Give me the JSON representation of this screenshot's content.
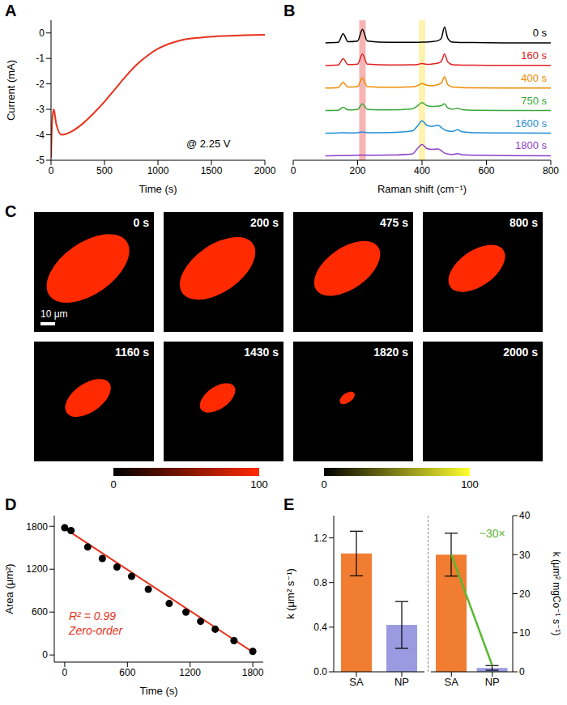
{
  "chart_data": [
    {
      "panel": "A",
      "type": "line",
      "x": [
        0,
        10,
        25,
        50,
        100,
        200,
        300,
        400,
        500,
        600,
        700,
        800,
        900,
        1000,
        1100,
        1200,
        1400,
        1600,
        1800,
        2000
      ],
      "values": [
        -4.9,
        -3.5,
        -3.0,
        -3.6,
        -4.0,
        -3.85,
        -3.55,
        -3.15,
        -2.7,
        -2.2,
        -1.7,
        -1.25,
        -0.9,
        -0.62,
        -0.43,
        -0.3,
        -0.18,
        -0.12,
        -0.09,
        -0.07
      ],
      "color": "#e8321c",
      "xlim": [
        0,
        2000
      ],
      "xticks": [
        0,
        500,
        1000,
        1500,
        2000
      ],
      "ylim": [
        -5,
        0.5
      ],
      "yticks": [
        -5,
        -4,
        -3,
        -2,
        -1,
        0
      ],
      "x_label": "Time (s)",
      "y_label": "Current (mA)",
      "annotation": "@ 2.25 V"
    },
    {
      "panel": "B",
      "type": "line",
      "x": [
        100,
        140,
        155,
        170,
        200,
        215,
        230,
        300,
        370,
        385,
        400,
        415,
        430,
        450,
        460,
        470,
        480,
        495,
        510,
        525,
        560,
        650,
        800
      ],
      "series": [
        {
          "name": "0 s",
          "color": "#000000",
          "values": [
            5,
            5.02,
            5.4,
            5.05,
            5.08,
            5.6,
            5.08,
            5.02,
            5.02,
            5.02,
            5.03,
            5.03,
            5.05,
            5.1,
            5.2,
            5.7,
            5.2,
            5.03,
            5.02,
            5.01,
            5.01,
            5,
            5
          ]
        },
        {
          "name": "160 s",
          "color": "#e02020",
          "values": [
            4,
            4.02,
            4.3,
            4.04,
            4.06,
            4.5,
            4.06,
            4.02,
            4.03,
            4.04,
            4.08,
            4.05,
            4.06,
            4.1,
            4.18,
            4.5,
            4.15,
            4.03,
            4.02,
            4.01,
            4.01,
            4,
            4
          ]
        },
        {
          "name": "400 s",
          "color": "#f08a00",
          "values": [
            3,
            3.02,
            3.25,
            3.04,
            3.06,
            3.45,
            3.06,
            3.03,
            3.05,
            3.1,
            3.2,
            3.12,
            3.1,
            3.15,
            3.22,
            3.5,
            3.15,
            3.04,
            3.03,
            3.02,
            3.01,
            3,
            3
          ]
        },
        {
          "name": "750 s",
          "color": "#3aa63a",
          "values": [
            2,
            2.01,
            2.15,
            2.03,
            2.05,
            2.3,
            2.05,
            2.03,
            2.08,
            2.2,
            2.35,
            2.22,
            2.18,
            2.2,
            2.22,
            2.3,
            2.12,
            2.06,
            2.1,
            2.04,
            2.01,
            2,
            2
          ]
        },
        {
          "name": "1600 s",
          "color": "#1f8fd6",
          "values": [
            1,
            1.01,
            1.02,
            1.01,
            1.02,
            1.05,
            1.02,
            1.03,
            1.1,
            1.3,
            1.55,
            1.35,
            1.3,
            1.35,
            1.25,
            1.15,
            1.1,
            1.08,
            1.15,
            1.06,
            1.02,
            1.01,
            1
          ]
        },
        {
          "name": "1800 s",
          "color": "#8b3fc8",
          "values": [
            0,
            0.01,
            0.01,
            0.01,
            0.02,
            0.03,
            0.02,
            0.03,
            0.08,
            0.3,
            0.5,
            0.32,
            0.28,
            0.3,
            0.22,
            0.12,
            0.08,
            0.06,
            0.1,
            0.04,
            0.02,
            0.01,
            0
          ]
        }
      ],
      "xlim": [
        0,
        800
      ],
      "xticks": [
        0,
        200,
        400,
        600,
        800
      ],
      "ylim": [
        -0.2,
        6
      ],
      "tick_labels": "x",
      "x_label": "Raman shift (cm⁻¹)",
      "highlights": [
        {
          "range": [
            205,
            225
          ],
          "color": "#f6a0a0"
        },
        {
          "range": [
            390,
            410
          ],
          "color": "#fff09a"
        }
      ]
    },
    {
      "panel": "C",
      "type": "image_series",
      "frames": [
        {
          "label": "0 s",
          "red_area": 1800
        },
        {
          "label": "200 s",
          "red_area": 1500
        },
        {
          "label": "475 s",
          "red_area": 1150
        },
        {
          "label": "800 s",
          "red_area": 850
        },
        {
          "label": "1160 s",
          "red_area": 550
        },
        {
          "label": "1430 s",
          "red_area": 330
        },
        {
          "label": "1820 s",
          "red_area": 60
        },
        {
          "label": "2000 s",
          "red_area": 0
        }
      ],
      "scale_bar": "10 μm",
      "colorbars": [
        {
          "colors": [
            "#000000",
            "#ff2a00"
          ],
          "ticks": [
            0,
            100
          ]
        },
        {
          "colors": [
            "#000000",
            "#ffff30"
          ],
          "ticks": [
            0,
            100
          ]
        }
      ]
    },
    {
      "panel": "D",
      "type": "scatter",
      "x": [
        0,
        60,
        220,
        360,
        500,
        640,
        800,
        1000,
        1160,
        1300,
        1440,
        1620,
        1800
      ],
      "values": [
        1780,
        1740,
        1510,
        1350,
        1230,
        1100,
        920,
        720,
        600,
        470,
        360,
        200,
        50
      ],
      "color": "#000000",
      "marker": "circle",
      "fit": {
        "x": [
          0,
          1800
        ],
        "values": [
          1770,
          40
        ],
        "color": "#e8321c"
      },
      "xlim": [
        -100,
        1900
      ],
      "xticks": [
        0,
        600,
        1200,
        1800
      ],
      "ylim": [
        -100,
        1950
      ],
      "yticks": [
        0,
        600,
        1200,
        1800
      ],
      "x_label": "Time (s)",
      "y_label": "Area (μm²)",
      "annotations": [
        "R² = 0.99",
        "Zero-order"
      ]
    },
    {
      "panel": "E",
      "type": "bar",
      "subplots": [
        {
          "categories": [
            "SA",
            "NP"
          ],
          "values": [
            1.06,
            0.42
          ],
          "errors": [
            0.2,
            0.21
          ],
          "colors": [
            "#f07d32",
            "#9a9ae0"
          ],
          "ylim": [
            0,
            1.4
          ],
          "yticks": [
            {
              "value": 0,
              "label": "0.0"
            },
            0.4,
            0.8,
            1.2
          ],
          "y_label": "k (μm² s⁻¹)"
        },
        {
          "categories": [
            "SA",
            "NP"
          ],
          "values": [
            30,
            1
          ],
          "errors": [
            5.5,
            0.6
          ],
          "colors": [
            "#f07d32",
            "#9a9ae0"
          ],
          "ylim": [
            0,
            40
          ],
          "yticks": [
            0,
            10,
            20,
            30,
            40
          ],
          "y_label": "k (μm² mgCo⁻¹ s⁻¹)",
          "axis": "y2"
        }
      ],
      "annotation": "~30×",
      "annotation_color": "#5cb832"
    }
  ]
}
